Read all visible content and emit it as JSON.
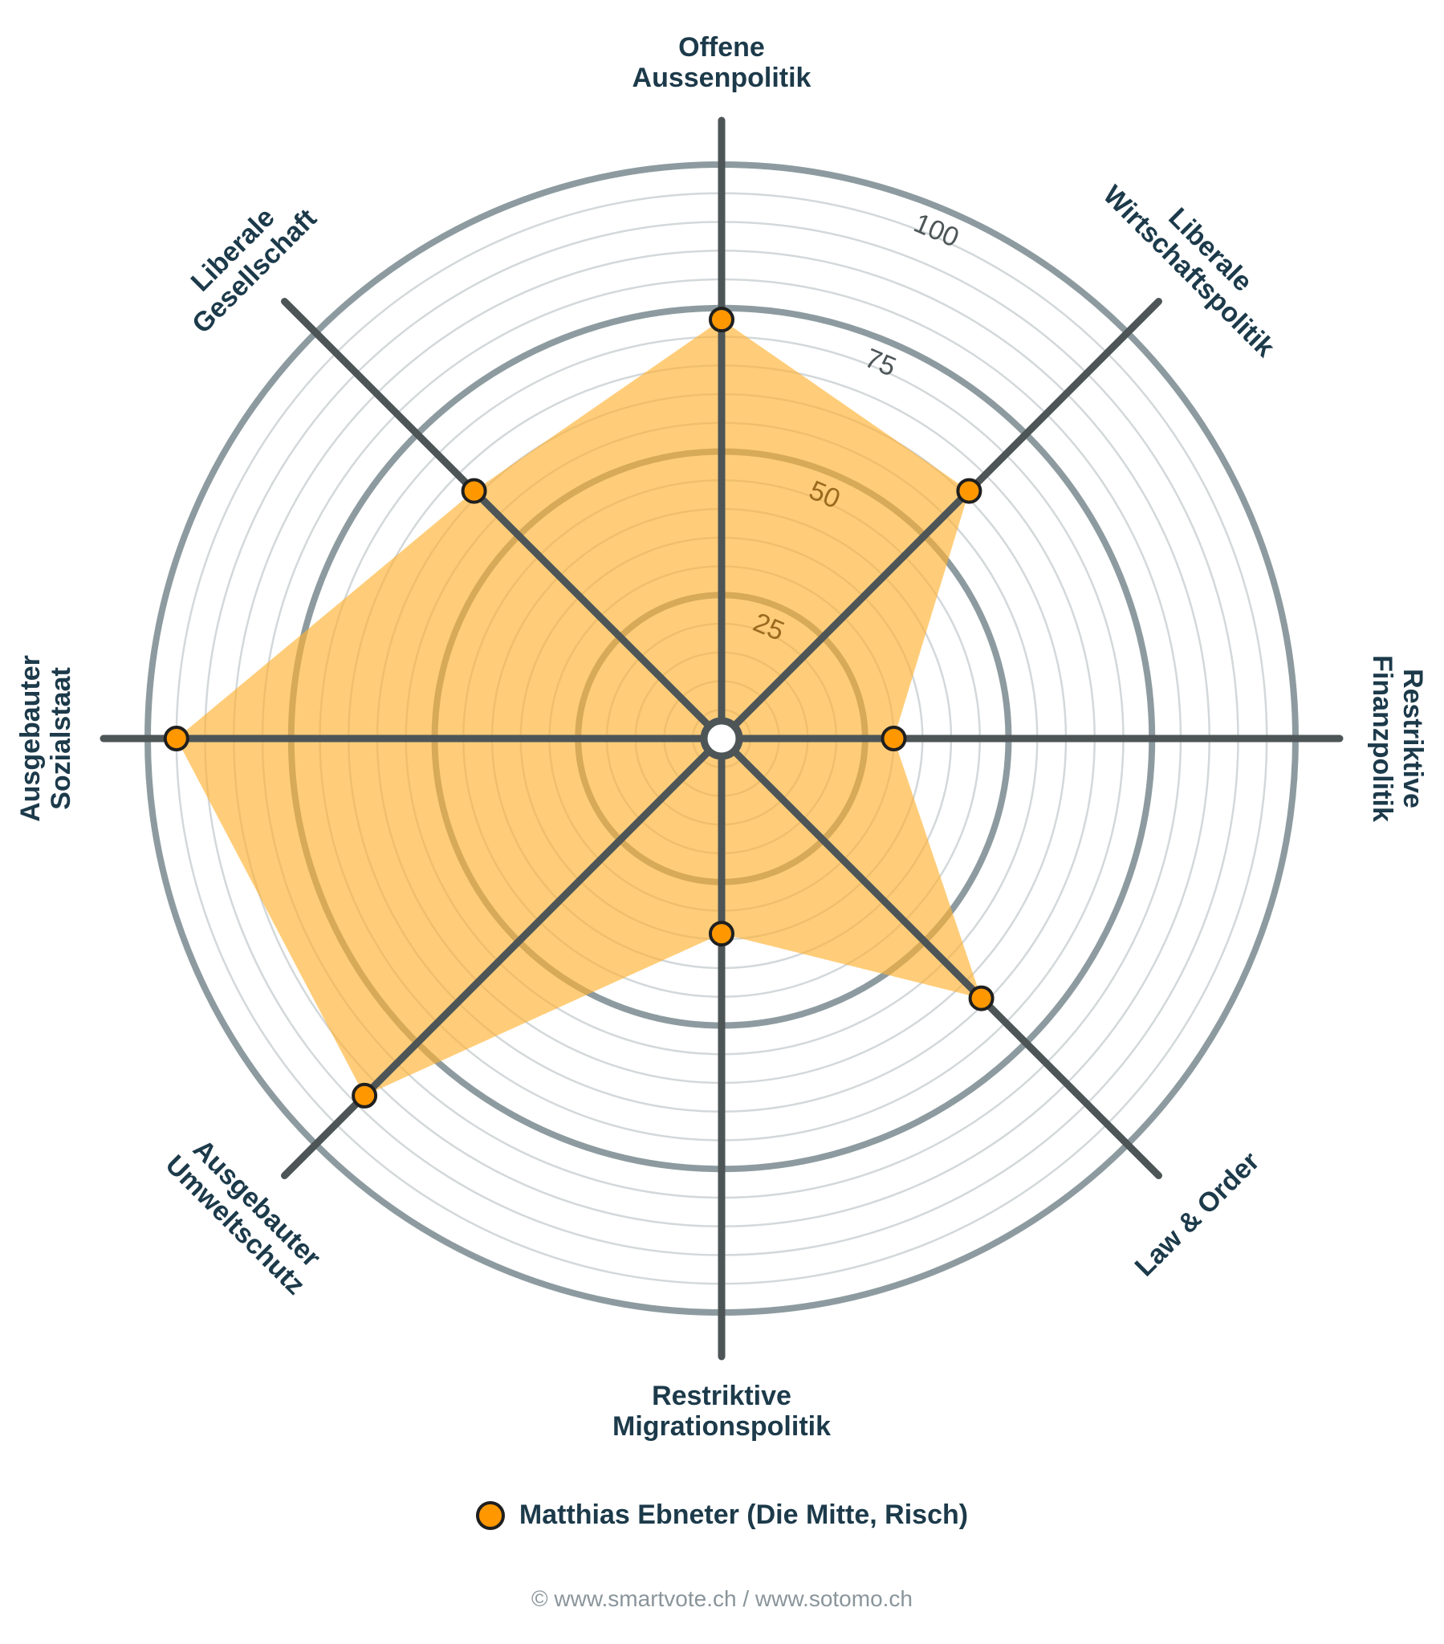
{
  "chart_data": {
    "type": "radar",
    "axes": [
      "Offene Aussenpolitik",
      "Liberale Wirtschaftspolitik",
      "Restriktive Finanzpolitik",
      "Law & Order",
      "Restriktive Migrationspolitik",
      "Ausgebauter Umweltschutz",
      "Ausgebauter Sozialstaat",
      "Liberale Gesellschaft"
    ],
    "axis_label_lines": [
      [
        "Offene",
        "Aussenpolitik"
      ],
      [
        "Liberale",
        "Wirtschaftspolitik"
      ],
      [
        "Restriktive",
        "Finanzpolitik"
      ],
      [
        "Law & Order"
      ],
      [
        "Restriktive",
        "Migrationspolitik"
      ],
      [
        "Ausgebauter",
        "Umweltschutz"
      ],
      [
        "Ausgebauter",
        "Sozialstaat"
      ],
      [
        "Liberale",
        "Gesellschaft"
      ]
    ],
    "series": [
      {
        "name": "Matthias Ebneter (Die Mitte, Risch)",
        "values": [
          73,
          61,
          30,
          64,
          34,
          88,
          95,
          61
        ]
      }
    ],
    "rlim": [
      0,
      100
    ],
    "major_ticks": [
      25,
      50,
      75,
      100
    ],
    "grid_step": 5,
    "legend_position": "bottom",
    "colors": {
      "fill": "#ffb233",
      "marker": "#ff9800",
      "spoke": "#4d5557",
      "major_ring": "#8d9ba0",
      "minor_ring": "#d3d8da"
    }
  },
  "footer": "© www.smartvote.ch / www.sotomo.ch"
}
